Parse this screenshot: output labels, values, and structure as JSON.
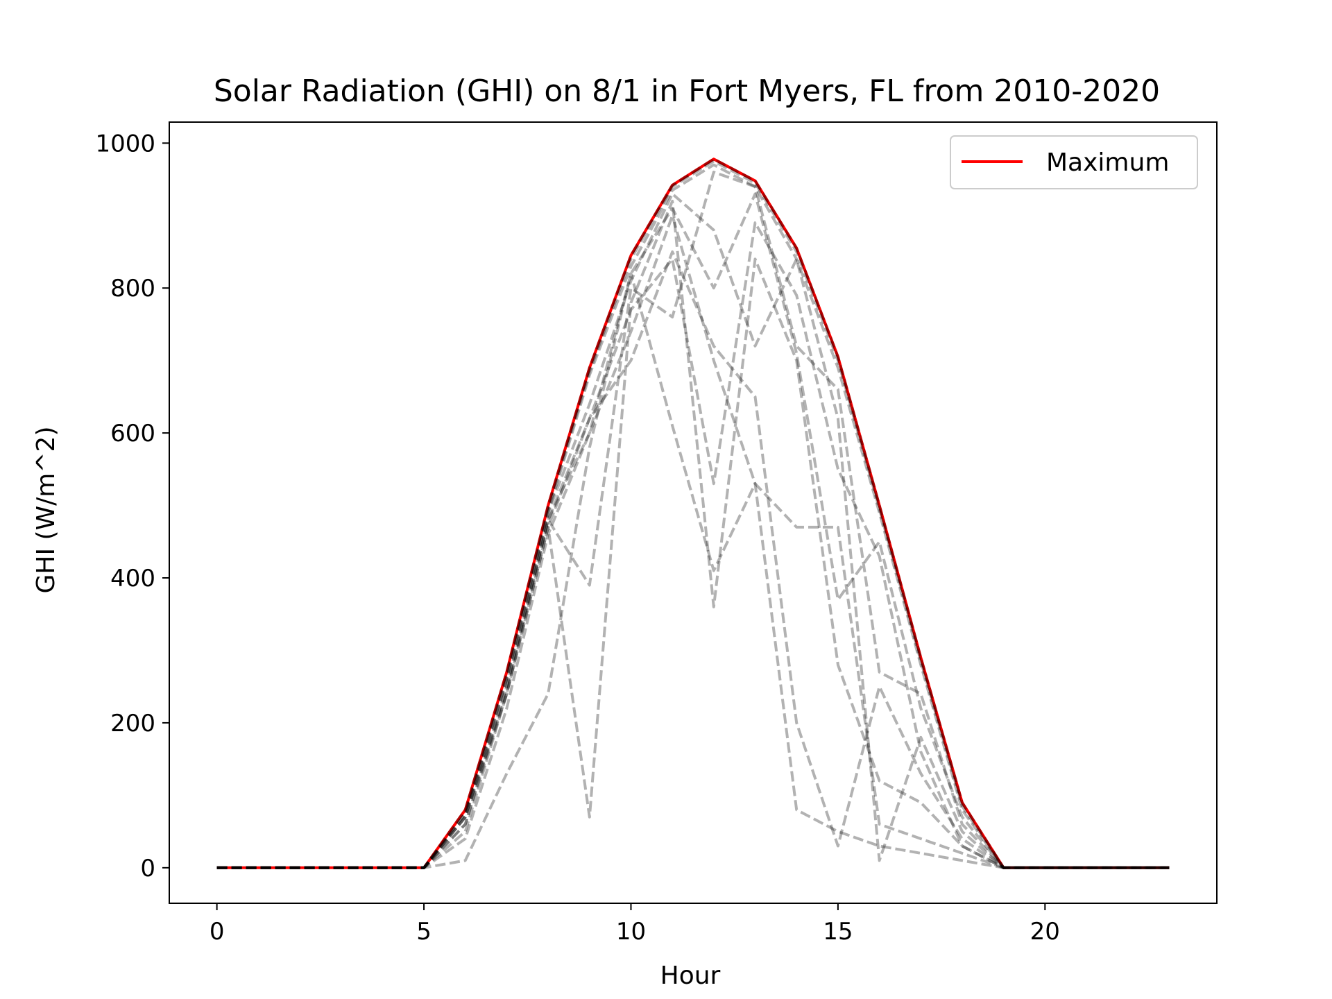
{
  "chart_data": {
    "type": "line",
    "title": "Solar Radiation (GHI) on 8/1 in Fort Myers, FL from 2010-2020",
    "xlabel": "Hour",
    "ylabel": "GHI (W/m^2)",
    "xlim": [
      -1.15,
      24.15
    ],
    "ylim": [
      -49,
      1029
    ],
    "x_ticks": [
      0,
      5,
      10,
      15,
      20
    ],
    "y_ticks": [
      0,
      200,
      400,
      600,
      800,
      1000
    ],
    "grid": false,
    "legend": {
      "location": "upper right",
      "entries": [
        "Maximum"
      ]
    },
    "colors": {
      "maximum": "#ff0000",
      "yearly": "#000000"
    },
    "x": [
      0,
      1,
      2,
      3,
      4,
      5,
      6,
      7,
      8,
      9,
      10,
      11,
      12,
      13,
      14,
      15,
      16,
      17,
      18,
      19,
      20,
      21,
      22,
      23
    ],
    "series": [
      {
        "name": "Maximum",
        "style": "solid",
        "color": "#ff0000",
        "values": [
          0,
          0,
          0,
          0,
          0,
          0,
          80,
          270,
          500,
          690,
          845,
          942,
          978,
          948,
          855,
          705,
          500,
          290,
          90,
          0,
          0,
          0,
          0,
          0
        ]
      },
      {
        "style": "dashed",
        "color": "#000000",
        "values": [
          0,
          0,
          0,
          0,
          0,
          0,
          80,
          270,
          500,
          690,
          845,
          942,
          978,
          948,
          855,
          705,
          500,
          290,
          90,
          0,
          0,
          0,
          0,
          0
        ]
      },
      {
        "style": "dashed",
        "color": "#000000",
        "values": [
          0,
          0,
          0,
          0,
          0,
          0,
          75,
          265,
          495,
          685,
          840,
          940,
          975,
          945,
          850,
          700,
          495,
          285,
          85,
          0,
          0,
          0,
          0,
          0
        ]
      },
      {
        "style": "dashed",
        "color": "#000000",
        "values": [
          0,
          0,
          0,
          0,
          0,
          0,
          75,
          260,
          490,
          680,
          830,
          935,
          970,
          940,
          840,
          690,
          490,
          280,
          80,
          0,
          0,
          0,
          0,
          0
        ]
      },
      {
        "style": "dashed",
        "color": "#000000",
        "values": [
          0,
          0,
          0,
          0,
          0,
          0,
          70,
          250,
          480,
          390,
          800,
          760,
          960,
          940,
          720,
          660,
          270,
          240,
          60,
          0,
          0,
          0,
          0,
          0
        ]
      },
      {
        "style": "dashed",
        "color": "#000000",
        "values": [
          0,
          0,
          0,
          0,
          0,
          0,
          60,
          240,
          470,
          70,
          780,
          920,
          360,
          840,
          700,
          280,
          120,
          90,
          30,
          0,
          0,
          0,
          0,
          0
        ]
      },
      {
        "style": "dashed",
        "color": "#000000",
        "values": [
          0,
          0,
          0,
          0,
          0,
          0,
          70,
          240,
          480,
          620,
          770,
          840,
          530,
          890,
          790,
          550,
          430,
          160,
          30,
          0,
          0,
          0,
          0,
          0
        ]
      },
      {
        "style": "dashed",
        "color": "#000000",
        "values": [
          0,
          0,
          0,
          0,
          0,
          0,
          60,
          250,
          480,
          600,
          820,
          910,
          800,
          930,
          710,
          370,
          450,
          220,
          70,
          0,
          0,
          0,
          0,
          0
        ]
      },
      {
        "style": "dashed",
        "color": "#000000",
        "values": [
          0,
          0,
          0,
          0,
          0,
          0,
          50,
          240,
          470,
          620,
          700,
          850,
          720,
          650,
          200,
          30,
          250,
          130,
          40,
          0,
          0,
          0,
          0,
          0
        ]
      },
      {
        "style": "dashed",
        "color": "#000000",
        "values": [
          0,
          0,
          0,
          0,
          0,
          0,
          10,
          130,
          240,
          580,
          820,
          610,
          410,
          530,
          470,
          470,
          60,
          40,
          20,
          0,
          0,
          0,
          0,
          0
        ]
      },
      {
        "style": "dashed",
        "color": "#000000",
        "values": [
          0,
          0,
          0,
          0,
          0,
          0,
          40,
          220,
          460,
          600,
          740,
          900,
          700,
          530,
          80,
          50,
          30,
          20,
          10,
          0,
          0,
          0,
          0,
          0
        ]
      },
      {
        "style": "dashed",
        "color": "#000000",
        "values": [
          0,
          0,
          0,
          0,
          0,
          0,
          70,
          260,
          490,
          640,
          810,
          930,
          880,
          720,
          840,
          620,
          10,
          180,
          50,
          0,
          0,
          0,
          0,
          0
        ]
      }
    ]
  }
}
